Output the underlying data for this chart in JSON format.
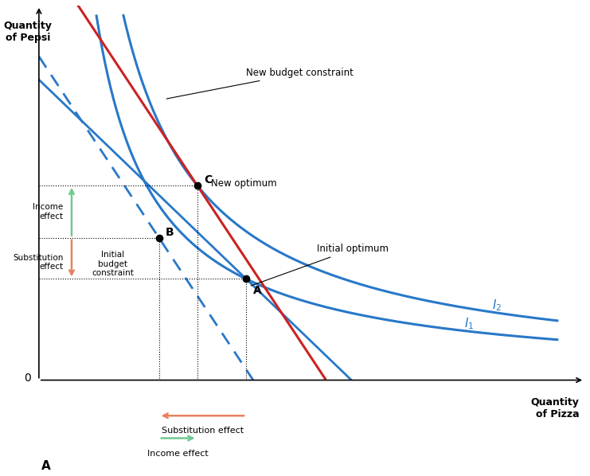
{
  "xlim": [
    0,
    10
  ],
  "ylim": [
    0,
    10
  ],
  "point_A": [
    3.8,
    2.7
  ],
  "point_B": [
    2.2,
    3.8
  ],
  "point_C": [
    2.9,
    5.2
  ],
  "initial_bc_slope": -1.4,
  "new_bc_slope": -2.2,
  "pivot_bc_slope": -2.2,
  "blue_color": "#2878c8",
  "red_color": "#cc2222",
  "salmon_color": "#e88060",
  "green_color": "#70c890"
}
